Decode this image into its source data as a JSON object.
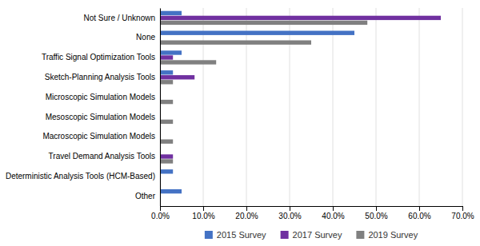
{
  "chart_data": {
    "type": "bar",
    "orientation": "horizontal",
    "categories": [
      "Not Sure / Unknown",
      "None",
      "Traffic Signal Optimization Tools",
      "Sketch-Planning Analysis Tools",
      "Microscopic Simulation Models",
      "Mesoscopic Simulation Models",
      "Macroscopic Simulation Models",
      "Travel Demand Analysis Tools",
      "Deterministic Analysis Tools (HCM-Based)",
      "Other"
    ],
    "series": [
      {
        "name": "2015 Survey",
        "color": "#4472C4",
        "values": [
          0.05,
          0.45,
          0.05,
          0.03,
          0.0,
          0.0,
          0.0,
          0.0,
          0.03,
          0.05
        ]
      },
      {
        "name": "2017 Survey",
        "color": "#7030A0",
        "values": [
          0.65,
          0.0,
          0.03,
          0.08,
          0.0,
          0.0,
          0.0,
          0.03,
          0.0,
          0.0
        ]
      },
      {
        "name": "2019 Survey",
        "color": "#808080",
        "values": [
          0.48,
          0.35,
          0.13,
          0.03,
          0.03,
          0.03,
          0.03,
          0.03,
          0.0,
          0.0
        ]
      }
    ],
    "xlim": [
      0.0,
      0.7
    ],
    "xticks": [
      {
        "value": 0.0,
        "label": "0.0%"
      },
      {
        "value": 0.1,
        "label": "10.0%"
      },
      {
        "value": 0.2,
        "label": "20.0%"
      },
      {
        "value": 0.3,
        "label": "30.0%"
      },
      {
        "value": 0.4,
        "label": "40.0%"
      },
      {
        "value": 0.5,
        "label": "50.0%"
      },
      {
        "value": 0.6,
        "label": "60.0%"
      },
      {
        "value": 0.7,
        "label": "70.0%"
      }
    ],
    "grid": true,
    "legend": "bottom"
  }
}
